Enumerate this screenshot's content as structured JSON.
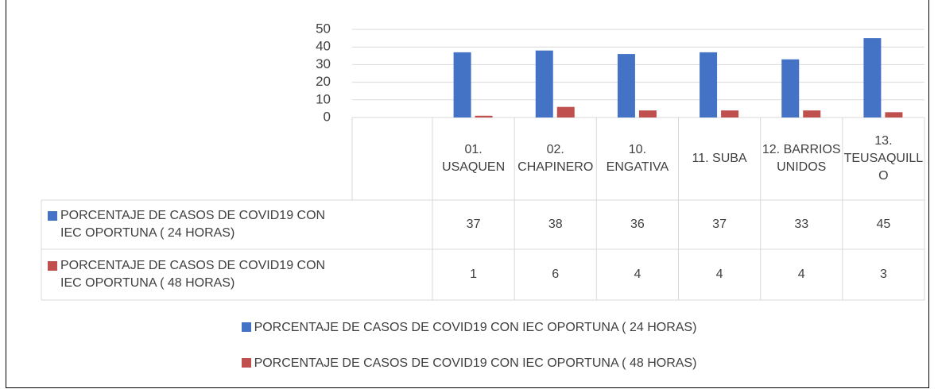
{
  "chart_data": {
    "type": "bar",
    "categories": [
      "01. USAQUEN",
      "02. CHAPINERO",
      "10. ENGATIVA",
      "11. SUBA",
      "12. BARRIOS UNIDOS",
      "13. TEUSAQUILLO"
    ],
    "series": [
      {
        "name": "PORCENTAJE DE CASOS DE COVID19 CON IEC OPORTUNA ( 24 HORAS)",
        "color": "#4472c4",
        "values": [
          37,
          38,
          36,
          37,
          33,
          45
        ]
      },
      {
        "name": "PORCENTAJE DE CASOS DE COVID19 CON IEC OPORTUNA ( 48 HORAS)",
        "color": "#c0504d",
        "values": [
          1,
          6,
          4,
          4,
          4,
          3
        ]
      }
    ],
    "ylim": [
      0,
      50
    ],
    "yticks": [
      0,
      10,
      20,
      30,
      40,
      50
    ],
    "grid": true
  }
}
